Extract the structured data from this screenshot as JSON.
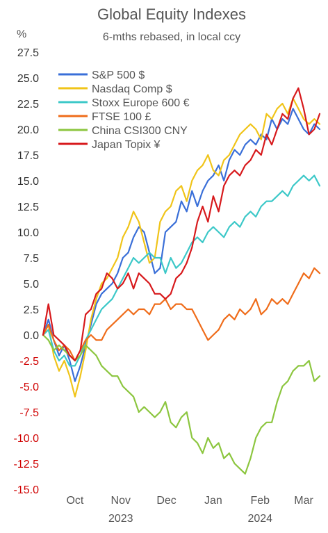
{
  "chart_data": {
    "type": "line",
    "title": "Global Equity Indexes",
    "subtitle": "6-mths rebased, in local ccy",
    "ylabel": "%",
    "ylim": [
      -15,
      27.5
    ],
    "yticks": [
      27.5,
      25.0,
      22.5,
      20.0,
      17.5,
      15.0,
      12.5,
      10.0,
      7.5,
      5.0,
      2.5,
      0.0,
      -2.5,
      -5.0,
      -7.5,
      -10.0,
      -12.5,
      -15.0
    ],
    "ytick_labels": [
      "27.5",
      "25.0",
      "22.5",
      "20.0",
      "17.5",
      "15.0",
      "12.5",
      "10.0",
      "7.5",
      "5.0",
      "2.5",
      "0.0",
      "-2.5",
      "-5.0",
      "-7.5",
      "-10.0",
      "-12.5",
      "-15.0"
    ],
    "xlim": [
      0,
      26
    ],
    "x_months": [
      {
        "label": "Oct",
        "x": 3
      },
      {
        "label": "Nov",
        "x": 7.3
      },
      {
        "label": "Dec",
        "x": 11.6
      },
      {
        "label": "Jan",
        "x": 16
      },
      {
        "label": "Feb",
        "x": 20.4
      },
      {
        "label": "Mar",
        "x": 24.5
      }
    ],
    "x_years": [
      {
        "label": "2023",
        "x": 7.3
      },
      {
        "label": "2024",
        "x": 20.4
      }
    ],
    "grid": false,
    "legend": "top-left",
    "colors": {
      "positive": "#333333",
      "negative": "#d00000"
    },
    "series": [
      {
        "name": "S&P 500 $",
        "color": "#3a6fd8",
        "x": [
          0,
          0.5,
          1,
          1.5,
          2,
          2.5,
          3,
          3.5,
          4,
          4.5,
          5,
          5.5,
          6,
          6.5,
          7,
          7.5,
          8,
          8.5,
          9,
          9.5,
          10,
          10.5,
          11,
          11.5,
          12,
          12.5,
          13,
          13.5,
          14,
          14.5,
          15,
          15.5,
          16,
          16.5,
          17,
          17.5,
          18,
          18.5,
          19,
          19.5,
          20,
          20.5,
          21,
          21.5,
          22,
          22.5,
          23,
          23.5,
          24,
          24.5,
          25,
          25.5,
          26
        ],
        "y": [
          0,
          1.5,
          -0.5,
          -2,
          -1,
          -2.5,
          -4.5,
          -3,
          -1,
          1,
          3,
          4,
          4.5,
          5,
          6,
          7.5,
          8,
          9.5,
          10.5,
          10,
          8,
          6,
          6.5,
          10,
          10.5,
          11,
          13,
          12,
          14,
          12.5,
          14,
          15,
          15.5,
          16.5,
          15,
          17,
          18,
          17.5,
          18.5,
          19,
          18.5,
          19.5,
          19,
          21,
          20,
          21,
          20.5,
          22,
          21,
          20,
          19.5,
          20.5,
          20
        ]
      },
      {
        "name": "Nasdaq Comp $",
        "color": "#f0c419",
        "x": [
          0,
          0.5,
          1,
          1.5,
          2,
          2.5,
          3,
          3.5,
          4,
          4.5,
          5,
          5.5,
          6,
          6.5,
          7,
          7.5,
          8,
          8.5,
          9,
          9.5,
          10,
          10.5,
          11,
          11.5,
          12,
          12.5,
          13,
          13.5,
          14,
          14.5,
          15,
          15.5,
          16,
          16.5,
          17,
          17.5,
          18,
          18.5,
          19,
          19.5,
          20,
          20.5,
          21,
          21.5,
          22,
          22.5,
          23,
          23.5,
          24,
          24.5,
          25,
          25.5,
          26
        ],
        "y": [
          0,
          1,
          -2,
          -3.5,
          -2.5,
          -4,
          -6,
          -4,
          -1.5,
          1.5,
          3.5,
          5,
          5.5,
          6.5,
          7.5,
          9.5,
          10.5,
          12,
          11,
          9,
          7,
          7.5,
          11,
          12,
          12.5,
          14,
          14.5,
          13,
          15,
          16,
          16.5,
          17.5,
          16,
          15.5,
          17,
          17.5,
          18.5,
          19.5,
          20,
          20.5,
          20,
          19,
          21.5,
          21,
          22,
          22.5,
          21.5,
          23,
          22,
          21,
          20.5,
          21,
          20.5
        ]
      },
      {
        "name": "Stoxx Europe 600 €",
        "color": "#3cc8c8",
        "x": [
          0,
          0.5,
          1,
          1.5,
          2,
          2.5,
          3,
          3.5,
          4,
          4.5,
          5,
          5.5,
          6,
          6.5,
          7,
          7.5,
          8,
          8.5,
          9,
          9.5,
          10,
          10.5,
          11,
          11.5,
          12,
          12.5,
          13,
          13.5,
          14,
          14.5,
          15,
          15.5,
          16,
          16.5,
          17,
          17.5,
          18,
          18.5,
          19,
          19.5,
          20,
          20.5,
          21,
          21.5,
          22,
          22.5,
          23,
          23.5,
          24,
          24.5,
          25,
          25.5,
          26
        ],
        "y": [
          0,
          0.5,
          -1.5,
          -2.5,
          -2,
          -3,
          -3,
          -2,
          -0.5,
          0.5,
          1.5,
          2.5,
          3,
          3.5,
          4.5,
          5.5,
          6.5,
          7.5,
          7,
          7.5,
          8,
          7.5,
          7.5,
          6,
          7.5,
          6.5,
          7,
          8,
          9,
          9.5,
          9,
          10,
          10.5,
          10,
          9.5,
          10.5,
          11,
          10.5,
          11.5,
          12,
          11.5,
          12.5,
          13,
          13,
          13.5,
          14,
          13.5,
          14.5,
          15,
          15.5,
          15,
          15.5,
          14.5
        ]
      },
      {
        "name": "FTSE 100 £",
        "color": "#ef6c1a",
        "x": [
          0,
          0.5,
          1,
          1.5,
          2,
          2.5,
          3,
          3.5,
          4,
          4.5,
          5,
          5.5,
          6,
          6.5,
          7,
          7.5,
          8,
          8.5,
          9,
          9.5,
          10,
          10.5,
          11,
          11.5,
          12,
          12.5,
          13,
          13.5,
          14,
          14.5,
          15,
          15.5,
          16,
          16.5,
          17,
          17.5,
          18,
          18.5,
          19,
          19.5,
          20,
          20.5,
          21,
          21.5,
          22,
          22.5,
          23,
          23.5,
          24,
          24.5,
          25,
          25.5,
          26
        ],
        "y": [
          0,
          1,
          -0.5,
          -1.5,
          -1,
          -1.5,
          -2.5,
          -1.5,
          -0.5,
          0,
          -0.5,
          -0.5,
          0.5,
          1,
          1.5,
          2,
          2.5,
          2,
          2.5,
          2.5,
          2,
          3,
          3,
          3.5,
          2.5,
          3,
          3,
          2.5,
          2.5,
          1.5,
          0.5,
          -0.5,
          0,
          0.5,
          1.5,
          2,
          1.5,
          2.5,
          2,
          2.5,
          3.5,
          2,
          2.5,
          3.5,
          3,
          3.5,
          3,
          4,
          5,
          6,
          5.5,
          6.5,
          6
        ]
      },
      {
        "name": "China CSI300 CNY",
        "color": "#8cc63f",
        "x": [
          0,
          0.5,
          1,
          1.5,
          2,
          2.5,
          3,
          3.5,
          4,
          4.5,
          5,
          5.5,
          6,
          6.5,
          7,
          7.5,
          8,
          8.5,
          9,
          9.5,
          10,
          10.5,
          11,
          11.5,
          12,
          12.5,
          13,
          13.5,
          14,
          14.5,
          15,
          15.5,
          16,
          16.5,
          17,
          17.5,
          18,
          18.5,
          19,
          19.5,
          20,
          20.5,
          21,
          21.5,
          22,
          22.5,
          23,
          23.5,
          24,
          24.5,
          25,
          25.5,
          26
        ],
        "y": [
          0,
          -0.5,
          -1.5,
          -1,
          -1.5,
          -2,
          -2.5,
          -2,
          -1,
          -1.5,
          -2,
          -3,
          -3.5,
          -4,
          -4,
          -5,
          -5.5,
          -6,
          -7.5,
          -7,
          -7.5,
          -8,
          -7.5,
          -6.5,
          -8.5,
          -9,
          -8,
          -7.5,
          -10,
          -10.5,
          -11.5,
          -10,
          -11,
          -10.5,
          -12,
          -11.5,
          -12.5,
          -13,
          -13.5,
          -12,
          -10,
          -9,
          -8.5,
          -8.5,
          -6.5,
          -5,
          -4.5,
          -3.5,
          -3,
          -3,
          -2.5,
          -4.5,
          -4
        ]
      },
      {
        "name": "Japan Topix ¥",
        "color": "#d7191c",
        "x": [
          0,
          0.5,
          1,
          1.5,
          2,
          2.5,
          3,
          3.5,
          4,
          4.5,
          5,
          5.5,
          6,
          6.5,
          7,
          7.5,
          8,
          8.5,
          9,
          9.5,
          10,
          10.5,
          11,
          11.5,
          12,
          12.5,
          13,
          13.5,
          14,
          14.5,
          15,
          15.5,
          16,
          16.5,
          17,
          17.5,
          18,
          18.5,
          19,
          19.5,
          20,
          20.5,
          21,
          21.5,
          22,
          22.5,
          23,
          23.5,
          24,
          24.5,
          25,
          25.5,
          26
        ],
        "y": [
          0,
          3,
          0,
          -0.5,
          -1,
          -2,
          -2.5,
          -1.5,
          2,
          2.5,
          4,
          4.5,
          6,
          5.5,
          4.5,
          5,
          6,
          4.5,
          6,
          5.5,
          5,
          4,
          4,
          3.5,
          4,
          5.5,
          6,
          7,
          8.5,
          11,
          12.5,
          11,
          13.5,
          12,
          14.5,
          15.5,
          16,
          15.5,
          16.5,
          17,
          18,
          17.5,
          19.5,
          18.5,
          20,
          21.5,
          21,
          23,
          24,
          22,
          19.5,
          20,
          21.5
        ]
      }
    ]
  }
}
